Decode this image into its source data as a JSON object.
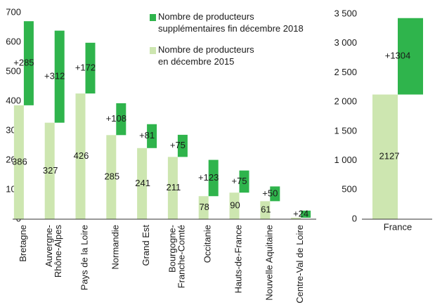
{
  "chart_data": [
    {
      "type": "stacked_bar_offset",
      "categories": [
        "Bretagne",
        "Auvergne-\nRhône-Alpes",
        "Pays de la Loire",
        "Normandie",
        "Grand Est",
        "Bourgogne-\nFranche-Comté",
        "Occitanie",
        "Hauts-de-France",
        "Nouvelle Aquitaine",
        "Centre-Val de Loire"
      ],
      "series": [
        {
          "name": "Nombre de producteurs en décembre 2015",
          "color": "#cde6b0",
          "values": [
            386,
            327,
            426,
            285,
            241,
            211,
            78,
            90,
            61,
            5
          ],
          "value_labels": [
            "386",
            "327",
            "426",
            "285",
            "241",
            "211",
            "78",
            "90",
            "61",
            null
          ]
        },
        {
          "name": "Nombre de producteurs supplémentaires fin décembre 2018",
          "color": "#2fb44c",
          "values": [
            285,
            312,
            172,
            108,
            81,
            75,
            123,
            75,
            50,
            24
          ],
          "value_labels": [
            "+285",
            "+312",
            "+172",
            "+108",
            "+81",
            "+75",
            "+123",
            "+75",
            "+50",
            "+24"
          ]
        }
      ],
      "ylim": [
        0,
        700
      ],
      "yticks": [
        0,
        100,
        200,
        300,
        400,
        500,
        600,
        700
      ],
      "legend": "top-right",
      "x_label_rotation": -90
    },
    {
      "type": "stacked_bar_offset",
      "categories": [
        "France"
      ],
      "series": [
        {
          "name": "Nombre de producteurs en décembre 2015",
          "color": "#cde6b0",
          "values": [
            2127
          ],
          "value_labels": [
            "2127"
          ]
        },
        {
          "name": "Nombre de producteurs supplémentaires fin décembre 2018",
          "color": "#2fb44c",
          "values": [
            1304
          ],
          "value_labels": [
            "+1304"
          ]
        }
      ],
      "ylim": [
        0,
        3500
      ],
      "yticks": [
        0,
        500,
        {
          "value": 1000,
          "label": "1 000"
        },
        {
          "value": 1500,
          "label": "1 500"
        },
        {
          "value": 2000,
          "label": "2 000"
        },
        {
          "value": 2500,
          "label": "2 500"
        },
        {
          "value": 3000,
          "label": "3 000"
        },
        {
          "value": 3500,
          "label": "3 500"
        }
      ],
      "x_label_rotation": 0
    }
  ]
}
